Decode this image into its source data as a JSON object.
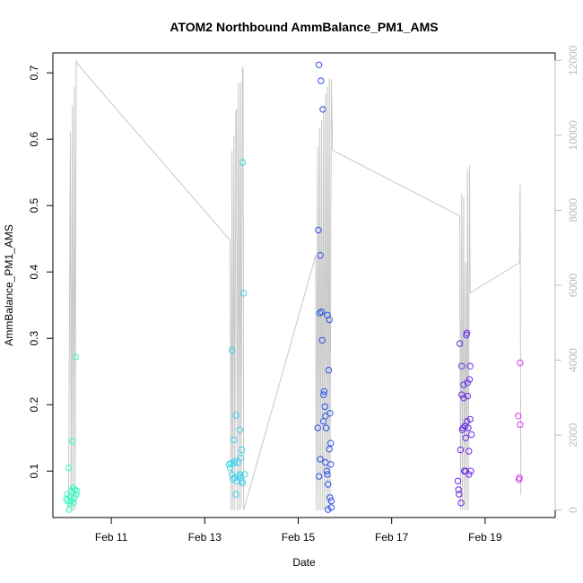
{
  "chart_data": {
    "type": "scatter",
    "title": "ATOM2 Northbound AmmBalance_PM1_AMS",
    "xlabel": "Date",
    "ylabel": "AmmBalance_PM1_AMS",
    "xlim": [
      "2005-02-09 18:00",
      "2005-02-20 12:00"
    ],
    "ylim": [
      0.03,
      0.73
    ],
    "y2lim": [
      -200,
      12200
    ],
    "x_ticks": [
      {
        "x": "2005-02-11",
        "label": "Feb 11"
      },
      {
        "x": "2005-02-13",
        "label": "Feb 13"
      },
      {
        "x": "2005-02-15",
        "label": "Feb 15"
      },
      {
        "x": "2005-02-17",
        "label": "Feb 17"
      },
      {
        "x": "2005-02-19",
        "label": "Feb 19"
      }
    ],
    "y_ticks": [
      "0.1",
      "0.2",
      "0.3",
      "0.4",
      "0.5",
      "0.6",
      "0.7"
    ],
    "y2_ticks": [
      "0",
      "2000",
      "4000",
      "6000",
      "8000",
      "10000",
      "12000"
    ],
    "grid": false,
    "legend": "none",
    "colors": {
      "line": "#c8c8c8",
      "axis": "#000000",
      "right_axis": "#bdbdbd"
    },
    "series": [
      {
        "color": "#34fbc0",
        "points": [
          [
            "2005-02-10 01:00",
            0.058
          ],
          [
            "2005-02-10 01:20",
            0.065
          ],
          [
            "2005-02-10 01:40",
            0.055
          ],
          [
            "2005-02-10 02:00",
            0.105
          ],
          [
            "2005-02-10 02:20",
            0.042
          ],
          [
            "2005-02-10 02:40",
            0.052
          ],
          [
            "2005-02-10 03:00",
            0.062
          ],
          [
            "2005-02-10 03:20",
            0.055
          ],
          [
            "2005-02-10 03:40",
            0.07
          ],
          [
            "2005-02-10 04:00",
            0.145
          ],
          [
            "2005-02-10 04:20",
            0.075
          ],
          [
            "2005-02-10 04:40",
            0.052
          ],
          [
            "2005-02-10 05:00",
            0.06
          ],
          [
            "2005-02-10 05:20",
            0.072
          ],
          [
            "2005-02-10 05:40",
            0.272
          ],
          [
            "2005-02-10 06:00",
            0.065
          ],
          [
            "2005-02-10 06:20",
            0.07
          ]
        ]
      },
      {
        "color": "#3fd4ec",
        "points": [
          [
            "2005-02-13 12:30",
            0.11
          ],
          [
            "2005-02-13 13:00",
            0.105
          ],
          [
            "2005-02-13 13:30",
            0.112
          ],
          [
            "2005-02-13 14:00",
            0.282
          ],
          [
            "2005-02-13 14:00",
            0.095
          ],
          [
            "2005-02-13 14:30",
            0.088
          ],
          [
            "2005-02-13 15:00",
            0.112
          ],
          [
            "2005-02-13 15:00",
            0.147
          ],
          [
            "2005-02-13 15:30",
            0.115
          ],
          [
            "2005-02-13 15:30",
            0.09
          ],
          [
            "2005-02-13 16:00",
            0.184
          ],
          [
            "2005-02-13 16:00",
            0.065
          ],
          [
            "2005-02-13 16:30",
            0.085
          ],
          [
            "2005-02-13 17:00",
            0.113
          ],
          [
            "2005-02-13 17:30",
            0.092
          ],
          [
            "2005-02-13 18:00",
            0.162
          ],
          [
            "2005-02-13 18:00",
            0.095
          ],
          [
            "2005-02-13 18:30",
            0.09
          ],
          [
            "2005-02-13 18:30",
            0.12
          ],
          [
            "2005-02-13 19:00",
            0.132
          ],
          [
            "2005-02-13 19:00",
            0.085
          ],
          [
            "2005-02-13 19:30",
            0.565
          ],
          [
            "2005-02-13 19:30",
            0.082
          ],
          [
            "2005-02-13 20:00",
            0.368
          ],
          [
            "2005-02-13 20:30",
            0.095
          ]
        ]
      },
      {
        "color": "#2a55e8",
        "points": [
          [
            "2005-02-15 10:00",
            0.165
          ],
          [
            "2005-02-15 10:20",
            0.463
          ],
          [
            "2005-02-15 10:40",
            0.712
          ],
          [
            "2005-02-15 10:40",
            0.092
          ],
          [
            "2005-02-15 11:00",
            0.338
          ],
          [
            "2005-02-15 11:20",
            0.425
          ],
          [
            "2005-02-15 11:20",
            0.118
          ],
          [
            "2005-02-15 11:40",
            0.688
          ],
          [
            "2005-02-15 12:00",
            0.34
          ],
          [
            "2005-02-15 12:20",
            0.297
          ],
          [
            "2005-02-15 12:40",
            0.645
          ],
          [
            "2005-02-15 13:00",
            0.215
          ],
          [
            "2005-02-15 13:00",
            0.175
          ],
          [
            "2005-02-15 13:20",
            0.22
          ],
          [
            "2005-02-15 13:40",
            0.197
          ],
          [
            "2005-02-15 14:00",
            0.183
          ],
          [
            "2005-02-15 14:00",
            0.113
          ],
          [
            "2005-02-15 14:20",
            0.165
          ],
          [
            "2005-02-15 14:40",
            0.1
          ],
          [
            "2005-02-15 15:00",
            0.335
          ],
          [
            "2005-02-15 15:00",
            0.095
          ],
          [
            "2005-02-15 15:20",
            0.042
          ],
          [
            "2005-02-15 15:20",
            0.08
          ],
          [
            "2005-02-15 15:40",
            0.252
          ],
          [
            "2005-02-15 16:00",
            0.328
          ],
          [
            "2005-02-15 16:00",
            0.133
          ],
          [
            "2005-02-15 16:20",
            0.187
          ],
          [
            "2005-02-15 16:20",
            0.06
          ],
          [
            "2005-02-15 16:40",
            0.11
          ],
          [
            "2005-02-15 16:40",
            0.142
          ],
          [
            "2005-02-15 17:00",
            0.045
          ],
          [
            "2005-02-15 17:00",
            0.055
          ]
        ]
      },
      {
        "color": "#6a2be8",
        "points": [
          [
            "2005-02-18 10:00",
            0.085
          ],
          [
            "2005-02-18 10:20",
            0.072
          ],
          [
            "2005-02-18 10:40",
            0.065
          ],
          [
            "2005-02-18 11:00",
            0.292
          ],
          [
            "2005-02-18 11:20",
            0.132
          ],
          [
            "2005-02-18 11:40",
            0.052
          ],
          [
            "2005-02-18 12:00",
            0.215
          ],
          [
            "2005-02-18 12:00",
            0.258
          ],
          [
            "2005-02-18 12:20",
            0.162
          ],
          [
            "2005-02-18 12:40",
            0.165
          ],
          [
            "2005-02-18 13:00",
            0.21
          ],
          [
            "2005-02-18 13:00",
            0.23
          ],
          [
            "2005-02-18 13:20",
            0.1
          ],
          [
            "2005-02-18 13:40",
            0.168
          ],
          [
            "2005-02-18 14:00",
            0.1
          ],
          [
            "2005-02-18 14:00",
            0.15
          ],
          [
            "2005-02-18 14:20",
            0.305
          ],
          [
            "2005-02-18 14:40",
            0.308
          ],
          [
            "2005-02-18 14:40",
            0.175
          ],
          [
            "2005-02-18 15:00",
            0.233
          ],
          [
            "2005-02-18 15:00",
            0.213
          ],
          [
            "2005-02-18 15:20",
            0.165
          ],
          [
            "2005-02-18 15:40",
            0.13
          ],
          [
            "2005-02-18 15:40",
            0.095
          ],
          [
            "2005-02-18 16:00",
            0.238
          ],
          [
            "2005-02-18 16:20",
            0.178
          ],
          [
            "2005-02-18 16:20",
            0.258
          ],
          [
            "2005-02-18 16:40",
            0.1
          ],
          [
            "2005-02-18 17:00",
            0.155
          ]
        ]
      },
      {
        "color": "#d43be8",
        "points": [
          [
            "2005-02-19 17:00",
            0.183
          ],
          [
            "2005-02-19 17:20",
            0.087
          ],
          [
            "2005-02-19 17:40",
            0.09
          ],
          [
            "2005-02-19 18:00",
            0.263
          ],
          [
            "2005-02-19 18:00",
            0.17
          ]
        ]
      }
    ],
    "right_axis_line": [
      [
        "2005-02-10 02:00",
        0
      ],
      [
        "2005-02-10 03:00",
        10100
      ],
      [
        "2005-02-10 03:20",
        0
      ],
      [
        "2005-02-10 04:00",
        10800
      ],
      [
        "2005-02-10 04:20",
        0
      ],
      [
        "2005-02-10 05:00",
        11300
      ],
      [
        "2005-02-10 05:20",
        0
      ],
      [
        "2005-02-10 06:00",
        12000
      ],
      [
        "2005-02-10 06:40",
        11900
      ],
      [
        "2005-02-13 13:00",
        7200
      ],
      [
        "2005-02-13 13:30",
        0
      ],
      [
        "2005-02-13 14:00",
        9600
      ],
      [
        "2005-02-13 14:20",
        0
      ],
      [
        "2005-02-13 15:00",
        10000
      ],
      [
        "2005-02-13 15:20",
        0
      ],
      [
        "2005-02-13 16:00",
        10600
      ],
      [
        "2005-02-13 16:20",
        10700
      ],
      [
        "2005-02-13 16:40",
        0
      ],
      [
        "2005-02-13 17:20",
        11400
      ],
      [
        "2005-02-13 17:40",
        0
      ],
      [
        "2005-02-13 18:20",
        11400
      ],
      [
        "2005-02-13 18:40",
        0
      ],
      [
        "2005-02-13 19:20",
        11800
      ],
      [
        "2005-02-13 19:40",
        11800
      ],
      [
        "2005-02-13 20:00",
        0
      ],
      [
        "2005-02-15 09:00",
        6800
      ],
      [
        "2005-02-15 09:20",
        0
      ],
      [
        "2005-02-15 10:00",
        9700
      ],
      [
        "2005-02-15 10:20",
        0
      ],
      [
        "2005-02-15 11:00",
        10200
      ],
      [
        "2005-02-15 11:20",
        0
      ],
      [
        "2005-02-15 12:00",
        10400
      ],
      [
        "2005-02-15 12:20",
        0
      ],
      [
        "2005-02-15 13:00",
        10800
      ],
      [
        "2005-02-15 13:20",
        0
      ],
      [
        "2005-02-15 14:00",
        11100
      ],
      [
        "2005-02-15 14:20",
        0
      ],
      [
        "2005-02-15 15:00",
        11300
      ],
      [
        "2005-02-15 15:20",
        0
      ],
      [
        "2005-02-15 16:00",
        11500
      ],
      [
        "2005-02-15 16:20",
        0
      ],
      [
        "2005-02-15 17:00",
        11500
      ],
      [
        "2005-02-15 17:40",
        9600
      ],
      [
        "2005-02-18 11:00",
        7850
      ],
      [
        "2005-02-18 11:20",
        0
      ],
      [
        "2005-02-18 12:00",
        8450
      ],
      [
        "2005-02-18 12:20",
        0
      ],
      [
        "2005-02-18 13:00",
        8350
      ],
      [
        "2005-02-18 13:20",
        0
      ],
      [
        "2005-02-18 14:00",
        6600
      ],
      [
        "2005-02-18 14:20",
        0
      ],
      [
        "2005-02-18 15:00",
        9100
      ],
      [
        "2005-02-18 15:20",
        0
      ],
      [
        "2005-02-18 16:00",
        9200
      ],
      [
        "2005-02-18 16:20",
        5800
      ],
      [
        "2005-02-19 17:40",
        6600
      ],
      [
        "2005-02-19 18:00",
        8700
      ],
      [
        "2005-02-19 18:20",
        400
      ]
    ]
  }
}
